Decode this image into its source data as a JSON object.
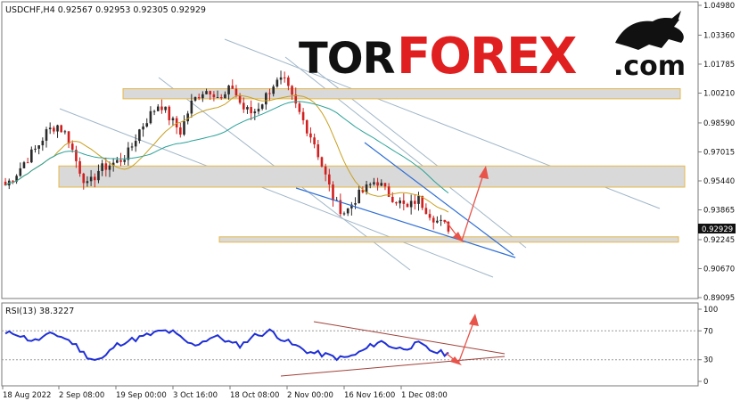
{
  "chart_data": [
    {
      "type": "candlestick",
      "symbol_header": "USDCHF,H4  0.92567 0.92953 0.92305 0.92929",
      "current_price": "0.92929",
      "y_ticks": [
        "1.04980",
        "1.03360",
        "1.01785",
        "1.00210",
        "0.98590",
        "0.97015",
        "0.95440",
        "0.93865",
        "0.92245",
        "0.90670",
        "0.89095"
      ],
      "y_range": [
        0.89095,
        1.0498
      ],
      "x_ticks": [
        "18 Aug 2022",
        "2 Sep 08:00",
        "19 Sep 00:00",
        "3 Oct 16:00",
        "18 Oct 08:00",
        "2 Nov 00:00",
        "16 Nov 16:00",
        "1 Dec 08:00"
      ],
      "price_path": [
        0.952,
        0.958,
        0.966,
        0.972,
        0.981,
        0.985,
        0.979,
        0.963,
        0.951,
        0.96,
        0.963,
        0.965,
        0.97,
        0.982,
        0.99,
        0.997,
        0.988,
        0.981,
        0.996,
        1.003,
        1.004,
        0.998,
        1.006,
        0.994,
        0.991,
        0.998,
        1.007,
        1.009,
        0.997,
        0.986,
        0.975,
        0.958,
        0.942,
        0.937,
        0.945,
        0.95,
        0.955,
        0.948,
        0.944,
        0.939,
        0.945,
        0.938,
        0.932,
        0.929
      ],
      "support_resistance_zones": [
        {
          "low": 0.999,
          "high": 1.0045
        },
        {
          "low": 0.951,
          "high": 0.9625
        },
        {
          "low": 0.9213,
          "high": 0.924
        }
      ],
      "colors": {
        "bull": "#2a2a2a",
        "bear": "#d11f1f",
        "ma_fast": "#c8a020",
        "ma_slow": "#2aa198",
        "zone_fill": "#d9d9d9",
        "zone_border": "#e8b84a",
        "arrow": "#e8534a",
        "channel": "#2f6fd6",
        "trendline": "#9fb6c8"
      }
    },
    {
      "type": "line",
      "indicator_label": "RSI(13) 38.3227",
      "y_ticks": [
        "100",
        "70",
        "30",
        "0"
      ],
      "y_range": [
        0,
        100
      ],
      "rsi_path": [
        65,
        68,
        60,
        56,
        62,
        66,
        60,
        52,
        38,
        30,
        32,
        48,
        55,
        58,
        62,
        66,
        70,
        68,
        58,
        50,
        55,
        62,
        60,
        52,
        50,
        62,
        66,
        70,
        60,
        52,
        46,
        40,
        38,
        35,
        32,
        34,
        40,
        48,
        56,
        50,
        45,
        48,
        52,
        44,
        40,
        38
      ],
      "colors": {
        "line": "#1f2fd6",
        "triangle": "#a0413a",
        "arrow": "#e8534a",
        "level": "#9a9a9a"
      }
    }
  ],
  "logo": {
    "part1": "TOR",
    "part2": "FOREX",
    "suffix": ".com"
  }
}
